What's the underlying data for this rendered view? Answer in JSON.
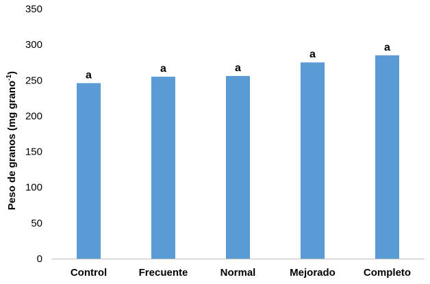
{
  "chart_data": {
    "type": "bar",
    "categories": [
      "Control",
      "Frecuente",
      "Normal",
      "Mejorado",
      "Completo"
    ],
    "values": [
      246,
      255,
      256,
      275,
      285
    ],
    "data_labels": [
      "a",
      "a",
      "a",
      "a",
      "a"
    ],
    "title": "",
    "xlabel": "",
    "ylabel": "Peso de granos (mg grano",
    "ylabel_superscript": "-1",
    "ylabel_suffix": ")",
    "ylim": [
      0,
      350
    ],
    "yticks": [
      0,
      50,
      100,
      150,
      200,
      250,
      300,
      350
    ],
    "grid": false,
    "legend": "none",
    "bar_color": "#5b9bd5",
    "axis_color": "#bfbfbf"
  }
}
